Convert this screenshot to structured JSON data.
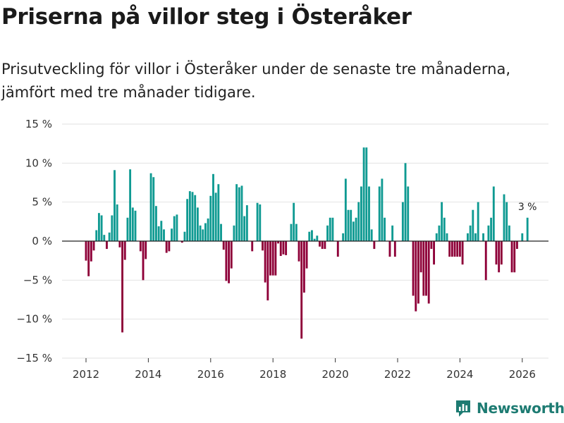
{
  "header": {
    "title": "Priserna på villor steg i Österåker",
    "subtitle": "Prisutveckling för villor i Österåker under de senaste tre månaderna, jämfört med tre månader tidigare."
  },
  "brand": {
    "name": "Newsworthy"
  },
  "colors": {
    "positive": "#0f9a92",
    "negative": "#8e0038",
    "grid": "#e2e2e2",
    "zero": "#222222",
    "brand": "#1d7b72"
  },
  "chart_data": {
    "type": "bar",
    "title": "Priserna på villor steg i Österåker",
    "xlabel": "",
    "ylabel": "",
    "ylim": [
      -15,
      15
    ],
    "yticks": [
      -15,
      -10,
      -5,
      0,
      5,
      10,
      15
    ],
    "ytick_labels": [
      "−15 %",
      "−10 %",
      "−5 %",
      "0 %",
      "5 %",
      "10 %",
      "15 %"
    ],
    "xticks": [
      2012,
      2014,
      2016,
      2018,
      2020,
      2022,
      2024,
      2026
    ],
    "xtick_labels": [
      "2012",
      "2014",
      "2016",
      "2018",
      "2020",
      "2022",
      "2024",
      "2026"
    ],
    "x_start": 2012.0,
    "x_step_months": 1,
    "values": [
      -2.5,
      -4.5,
      -2.6,
      -1.2,
      1.4,
      3.6,
      3.3,
      0.8,
      -1.0,
      1.1,
      3.3,
      9.1,
      4.7,
      -0.8,
      -11.7,
      -2.4,
      3.0,
      9.2,
      4.3,
      3.9,
      0.0,
      -1.3,
      -5.0,
      -2.3,
      0.0,
      8.7,
      8.2,
      4.5,
      1.9,
      2.6,
      1.5,
      -1.5,
      -1.3,
      1.6,
      3.2,
      3.4,
      0.0,
      -0.2,
      1.2,
      5.4,
      6.4,
      6.3,
      5.9,
      4.3,
      2.0,
      1.5,
      2.3,
      2.9,
      5.8,
      8.6,
      6.2,
      7.3,
      2.2,
      -1.1,
      -5.1,
      -5.4,
      -3.5,
      2.0,
      7.3,
      6.9,
      7.1,
      3.2,
      4.6,
      0.0,
      -1.3,
      0.0,
      4.9,
      4.7,
      -1.2,
      -5.3,
      -7.6,
      -4.4,
      -4.4,
      -4.4,
      -0.3,
      -1.9,
      -1.7,
      -1.8,
      0.0,
      2.2,
      4.9,
      2.2,
      -2.6,
      -12.5,
      -6.6,
      -3.5,
      1.2,
      1.4,
      0.3,
      0.7,
      -0.7,
      -1.0,
      -1.0,
      2.0,
      3.0,
      3.0,
      0.0,
      -2.0,
      0.0,
      1.0,
      8.0,
      4.0,
      4.0,
      2.5,
      3.0,
      5.0,
      7.0,
      12.0,
      12.0,
      7.0,
      1.5,
      -1.0,
      0.0,
      7.0,
      8.0,
      3.0,
      0.0,
      -2.0,
      2.0,
      -2.0,
      0.0,
      0.0,
      5.0,
      10.0,
      7.0,
      0.0,
      -7.0,
      -9.0,
      -8.0,
      -4.0,
      -7.0,
      -7.0,
      -8.0,
      -1.0,
      -3.0,
      1.0,
      2.0,
      5.0,
      3.0,
      1.0,
      -2.0,
      -2.0,
      -2.0,
      -2.0,
      -2.0,
      -3.0,
      0.0,
      1.0,
      2.0,
      4.0,
      1.0,
      5.0,
      0.0,
      1.0,
      -5.0,
      2.0,
      3.0,
      7.0,
      -3.0,
      -4.0,
      -3.0,
      6.0,
      5.0,
      2.0,
      -4.0,
      -4.0,
      -1.0,
      0.0,
      1.0,
      0.0,
      3.0
    ],
    "annotations": [
      {
        "text": "3 %",
        "label_for": "last"
      }
    ]
  }
}
